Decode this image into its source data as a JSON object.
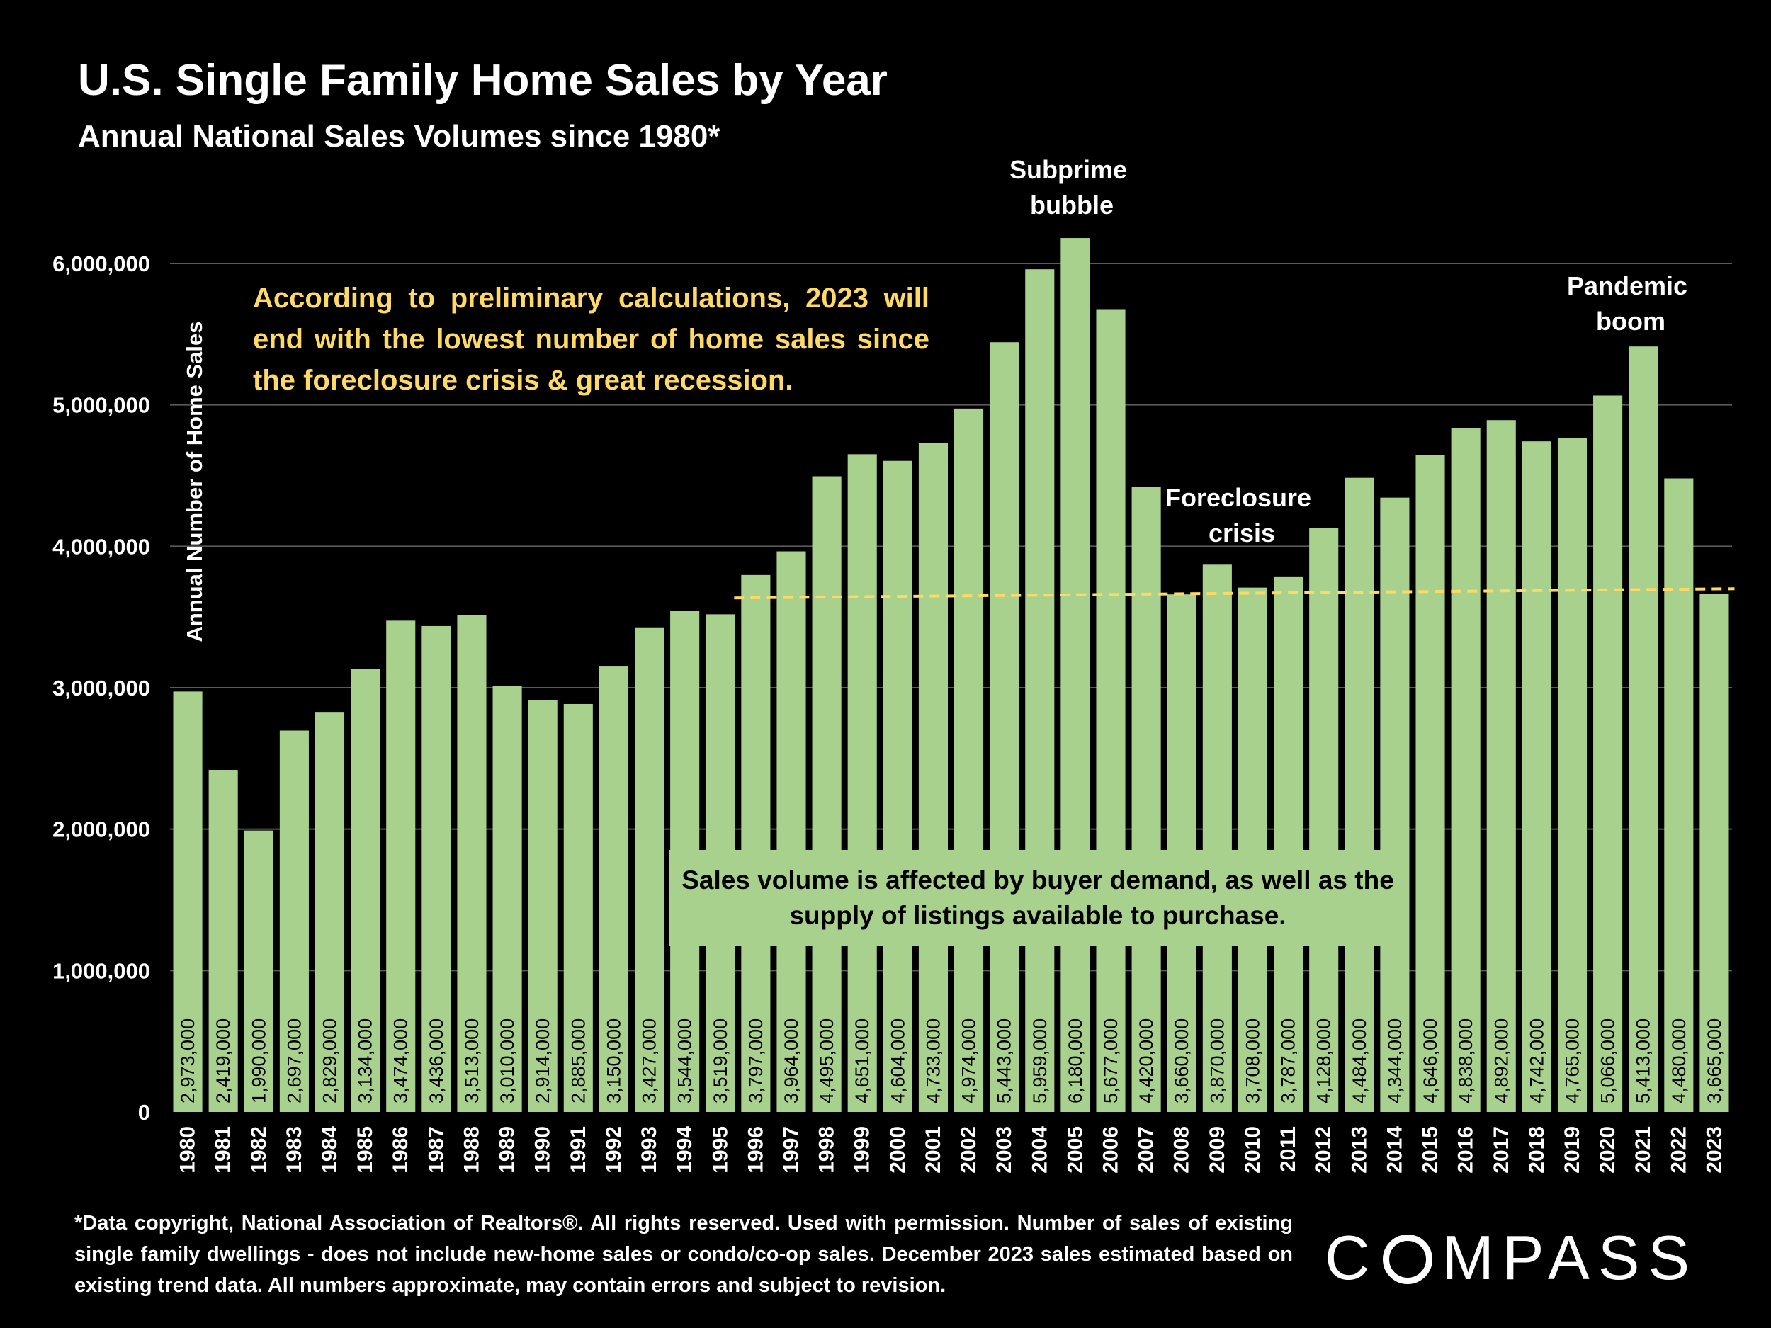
{
  "title": "U.S. Single Family Home Sales by Year",
  "subtitle": "Annual National Sales Volumes since 1980*",
  "annotations": {
    "prelim": "According to preliminary calculations, 2023 will end with the lowest number of home sales since the foreclosure crisis & great recession.",
    "supply_note": "Sales volume is affected by buyer demand, as well as the supply of listings available to purchase.",
    "subprime_line1": "Subprime",
    "subprime_line2": "bubble",
    "pandemic_line1": "Pandemic",
    "pandemic_line2": "boom",
    "foreclosure_line1": "Foreclosure",
    "foreclosure_line2": "crisis"
  },
  "footnote": "*Data copyright, National Association of Realtors®. All rights reserved. Used with permission. Number of sales of existing single family dwellings - does not include new-home sales or condo/co-op sales. December 2023 sales estimated based on existing trend data. All numbers approximate, may contain errors and subject to revision.",
  "logo": {
    "pre": "C",
    "post": "MPASS"
  },
  "colors": {
    "bar": "#a9d18e",
    "trend": "#ffd966",
    "background": "#000000",
    "grid": "#595959"
  },
  "chart_data": {
    "type": "bar",
    "ylabel": "Annual Number of Home Sales",
    "ylim": [
      0,
      6000000
    ],
    "yticks": [
      0,
      1000000,
      2000000,
      3000000,
      4000000,
      5000000,
      6000000
    ],
    "ytick_labels": [
      "0",
      "1,000,000",
      "2,000,000",
      "3,000,000",
      "4,000,000",
      "5,000,000",
      "6,000,000"
    ],
    "grid": true,
    "categories": [
      "1980",
      "1981",
      "1982",
      "1983",
      "1984",
      "1985",
      "1986",
      "1987",
      "1988",
      "1989",
      "1990",
      "1991",
      "1992",
      "1993",
      "1994",
      "1995",
      "1996",
      "1997",
      "1998",
      "1999",
      "2000",
      "2001",
      "2002",
      "2003",
      "2004",
      "2005",
      "2006",
      "2007",
      "2008",
      "2009",
      "2010",
      "2011",
      "2012",
      "2013",
      "2014",
      "2015",
      "2016",
      "2017",
      "2018",
      "2019",
      "2020",
      "2021",
      "2022",
      "2023"
    ],
    "values": [
      2973000,
      2419000,
      1990000,
      2697000,
      2829000,
      3134000,
      3474000,
      3436000,
      3513000,
      3010000,
      2914000,
      2885000,
      3150000,
      3427000,
      3544000,
      3519000,
      3797000,
      3964000,
      4495000,
      4651000,
      4604000,
      4733000,
      4974000,
      5443000,
      5959000,
      6180000,
      5677000,
      4420000,
      3660000,
      3870000,
      3708000,
      3787000,
      4128000,
      4484000,
      4344000,
      4646000,
      4838000,
      4892000,
      4742000,
      4765000,
      5066000,
      5413000,
      4480000,
      3665000
    ],
    "value_labels": [
      "2,973,000",
      "2,419,000",
      "1,990,000",
      "2,697,000",
      "2,829,000",
      "3,134,000",
      "3,474,000",
      "3,436,000",
      "3,513,000",
      "3,010,000",
      "2,914,000",
      "2,885,000",
      "3,150,000",
      "3,427,000",
      "3,544,000",
      "3,519,000",
      "3,797,000",
      "3,964,000",
      "4,495,000",
      "4,651,000",
      "4,604,000",
      "4,733,000",
      "4,974,000",
      "5,443,000",
      "5,959,000",
      "6,180,000",
      "5,677,000",
      "4,420,000",
      "3,660,000",
      "3,870,000",
      "3,708,000",
      "3,787,000",
      "4,128,000",
      "4,484,000",
      "4,344,000",
      "4,646,000",
      "4,838,000",
      "4,892,000",
      "4,742,000",
      "4,765,000",
      "5,066,000",
      "5,413,000",
      "4,480,000",
      "3,665,000"
    ],
    "trend_line": {
      "style": "dashed",
      "from": {
        "x": "1996",
        "y": 3635000
      },
      "to": {
        "x": "2023",
        "y": 3700000
      }
    }
  }
}
